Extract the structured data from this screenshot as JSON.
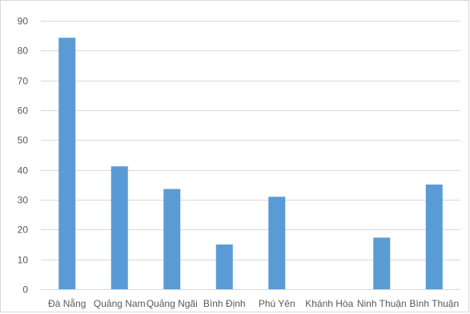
{
  "chart_data": {
    "type": "bar",
    "title": "",
    "xlabel": "",
    "ylabel": "",
    "categories": [
      "Đà Nẵng",
      "Quảng Nam",
      "Quảng Ngãi",
      "Bình Định",
      "Phú Yên",
      "Khánh Hòa",
      "Ninh Thuận",
      "Bình Thuận"
    ],
    "values": [
      84.3,
      41.2,
      33.6,
      15.0,
      31.0,
      0,
      17.3,
      35.1
    ],
    "ylim": [
      0,
      90
    ],
    "yticks": [
      0,
      10,
      20,
      30,
      40,
      50,
      60,
      70,
      80,
      90
    ],
    "ytick_labels": [
      "0",
      "10",
      "20",
      "30",
      "40",
      "50",
      "60",
      "70",
      "80",
      "90"
    ],
    "grid": true,
    "legend": "none",
    "colors": {
      "bar": "#5b9bd5",
      "grid": "#d9d9d9",
      "axis": "#d9d9d9",
      "text": "#595959"
    }
  }
}
